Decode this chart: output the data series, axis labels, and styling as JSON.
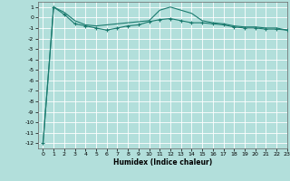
{
  "xlabel": "Humidex (Indice chaleur)",
  "ylabel": "",
  "background_color": "#b2dfdb",
  "grid_color": "#ffffff",
  "line_color": "#1a7a6e",
  "xlim": [
    -0.5,
    23
  ],
  "ylim": [
    -12.5,
    1.5
  ],
  "x": [
    0,
    1,
    2,
    3,
    4,
    5,
    6,
    7,
    8,
    9,
    10,
    11,
    12,
    13,
    14,
    15,
    16,
    17,
    18,
    19,
    20,
    21,
    22,
    23
  ],
  "y_line": [
    -12,
    1,
    0.5,
    -0.3,
    -0.7,
    -0.8,
    -0.7,
    -0.6,
    -0.5,
    -0.4,
    -0.3,
    0.7,
    1.0,
    0.7,
    0.4,
    -0.3,
    -0.5,
    -0.6,
    -0.8,
    -0.9,
    -0.9,
    -1.0,
    -1.0,
    -1.2
  ],
  "y_markers": [
    -12,
    1,
    0.3,
    -0.6,
    -0.8,
    -1.0,
    -1.2,
    -1.0,
    -0.8,
    -0.7,
    -0.4,
    -0.2,
    -0.1,
    -0.3,
    -0.5,
    -0.5,
    -0.6,
    -0.7,
    -0.9,
    -1.0,
    -1.0,
    -1.1,
    -1.1,
    -1.2
  ],
  "yticks": [
    1,
    0,
    -1,
    -2,
    -3,
    -4,
    -5,
    -6,
    -7,
    -8,
    -9,
    -10,
    -11,
    -12
  ],
  "xticks": [
    0,
    1,
    2,
    3,
    4,
    5,
    6,
    7,
    8,
    9,
    10,
    11,
    12,
    13,
    14,
    15,
    16,
    17,
    18,
    19,
    20,
    21,
    22,
    23
  ]
}
